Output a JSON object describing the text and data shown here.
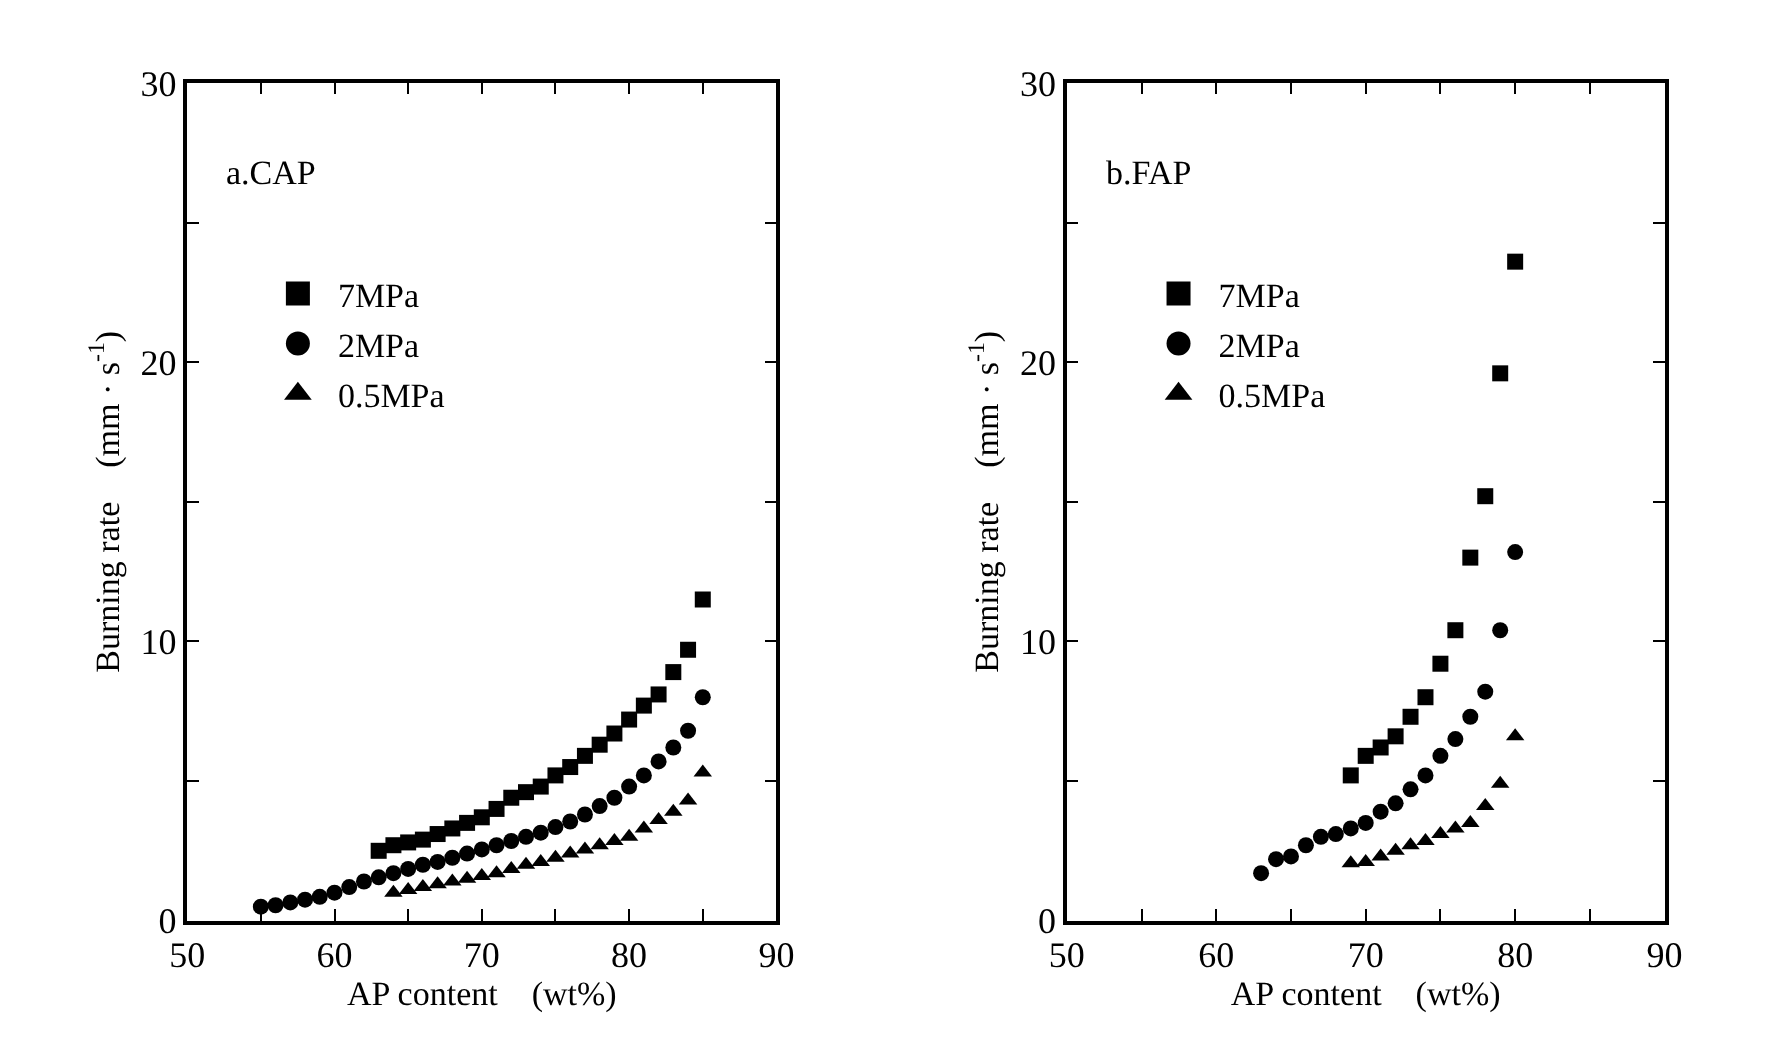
{
  "chart_data": [
    {
      "type": "scatter",
      "xlabel": "AP content    (wt%)",
      "ylabel": "Burning rate    (mm · s$^{-1}$)",
      "annotations": [
        "a.CAP"
      ],
      "xlim": [
        50,
        90
      ],
      "xticks": [
        50,
        {
          "value": 55,
          "label": null
        },
        60,
        {
          "value": 65,
          "label": null
        },
        70,
        {
          "value": 75,
          "label": null
        },
        80,
        {
          "value": 85,
          "label": null
        },
        90
      ],
      "ylim": [
        0,
        30
      ],
      "yticks": [
        0,
        {
          "value": 5,
          "label": null
        },
        10,
        {
          "value": 15,
          "label": null
        },
        20,
        {
          "value": 25,
          "label": null
        },
        30
      ],
      "legend": "top left",
      "series": [
        {
          "name": "7MPa",
          "color": "#000000",
          "marker": "square",
          "x": [
            63,
            64,
            65,
            66,
            67,
            68,
            69,
            70,
            71,
            72,
            73,
            74,
            75,
            76,
            77,
            78,
            79,
            80,
            81,
            82,
            83,
            84,
            85
          ],
          "values": [
            2.5,
            2.7,
            2.8,
            2.9,
            3.1,
            3.3,
            3.5,
            3.7,
            4.0,
            4.4,
            4.6,
            4.8,
            5.2,
            5.5,
            5.9,
            6.3,
            6.7,
            7.2,
            7.7,
            8.1,
            8.9,
            9.7,
            11.5
          ]
        },
        {
          "name": "2MPa",
          "color": "#000000",
          "marker": "circle",
          "x": [
            55,
            56,
            57,
            58,
            59,
            60,
            61,
            62,
            63,
            64,
            65,
            66,
            67,
            68,
            69,
            70,
            71,
            72,
            73,
            74,
            75,
            76,
            77,
            78,
            79,
            80,
            81,
            82,
            83,
            84,
            85
          ],
          "values": [
            0.5,
            0.55,
            0.65,
            0.75,
            0.85,
            1.0,
            1.2,
            1.4,
            1.55,
            1.7,
            1.85,
            2.0,
            2.1,
            2.25,
            2.4,
            2.55,
            2.7,
            2.85,
            3.0,
            3.15,
            3.35,
            3.55,
            3.8,
            4.1,
            4.4,
            4.8,
            5.2,
            5.7,
            6.2,
            6.8,
            8.0
          ]
        },
        {
          "name": "0.5MPa",
          "color": "#000000",
          "marker": "triangle",
          "x": [
            64,
            65,
            66,
            67,
            68,
            69,
            70,
            71,
            72,
            73,
            74,
            75,
            76,
            77,
            78,
            79,
            80,
            81,
            82,
            83,
            84,
            85
          ],
          "values": [
            1.0,
            1.1,
            1.2,
            1.3,
            1.4,
            1.5,
            1.6,
            1.7,
            1.85,
            2.0,
            2.1,
            2.25,
            2.4,
            2.55,
            2.7,
            2.85,
            3.0,
            3.3,
            3.6,
            3.9,
            4.3,
            5.3
          ]
        }
      ]
    },
    {
      "type": "scatter",
      "xlabel": "AP content    (wt%)",
      "ylabel": "Burning rate    (mm · s$^{-1}$)",
      "annotations": [
        "b.FAP"
      ],
      "xlim": [
        50,
        90
      ],
      "xticks": [
        50,
        {
          "value": 55,
          "label": null
        },
        60,
        {
          "value": 65,
          "label": null
        },
        70,
        {
          "value": 75,
          "label": null
        },
        80,
        {
          "value": 85,
          "label": null
        },
        90
      ],
      "ylim": [
        0,
        30
      ],
      "yticks": [
        0,
        {
          "value": 5,
          "label": null
        },
        10,
        {
          "value": 15,
          "label": null
        },
        20,
        {
          "value": 25,
          "label": null
        },
        30
      ],
      "legend": "top left",
      "series": [
        {
          "name": "7MPa",
          "color": "#000000",
          "marker": "square",
          "x": [
            69,
            70,
            71,
            72,
            73,
            74,
            75,
            76,
            77,
            78,
            79,
            80
          ],
          "values": [
            5.2,
            5.9,
            6.2,
            6.6,
            7.3,
            8.0,
            9.2,
            10.4,
            13.0,
            15.2,
            19.6,
            23.6
          ]
        },
        {
          "name": "2MPa",
          "color": "#000000",
          "marker": "circle",
          "x": [
            63,
            64,
            65,
            66,
            67,
            68,
            69,
            70,
            71,
            72,
            73,
            74,
            75,
            76,
            77,
            78,
            79,
            80
          ],
          "values": [
            1.7,
            2.2,
            2.3,
            2.7,
            3.0,
            3.1,
            3.3,
            3.5,
            3.9,
            4.2,
            4.7,
            5.2,
            5.9,
            6.5,
            7.3,
            8.2,
            10.4,
            13.2
          ]
        },
        {
          "name": "0.5MPa",
          "color": "#000000",
          "marker": "triangle",
          "x": [
            69,
            70,
            71,
            72,
            73,
            74,
            75,
            76,
            77,
            78,
            79,
            80
          ],
          "values": [
            2.05,
            2.1,
            2.3,
            2.5,
            2.7,
            2.85,
            3.1,
            3.3,
            3.5,
            4.1,
            4.9,
            6.6
          ]
        }
      ]
    }
  ]
}
